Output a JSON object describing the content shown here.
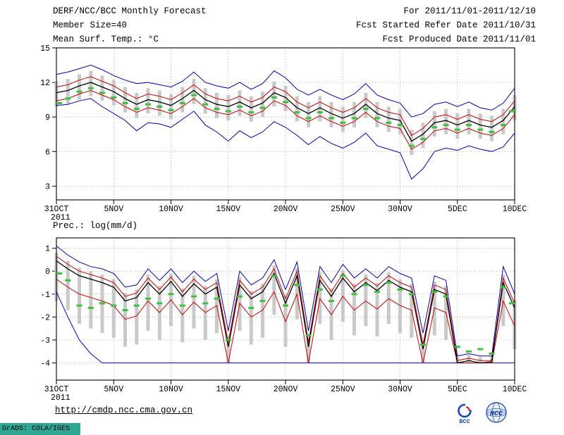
{
  "header": {
    "title": "DERF/NCC/BCC Monthly Forecast",
    "member_size": "Member Size=40",
    "forecast_range": "For 2011/11/01-2011/12/10",
    "refer_date": "Fcst Started Refer Date 2011/10/31",
    "produced_date": "Fcst Produced Date 2011/11/01"
  },
  "footer": {
    "url": "http://cmdp.ncc.cma.gov.cn",
    "bcc_logo_text": "BCC",
    "ncc_logo_text": "NCC",
    "grads_credit": "GrADS: COLA/IGES"
  },
  "colors": {
    "envelope_blue": "#0000b4",
    "quartile_red": "#c80000",
    "mean_black": "#000000",
    "obs_green": "#3fbf3f",
    "spread_gray": "#c9c9c9",
    "grads_bar_teal": "#2fa793"
  },
  "chart_data": [
    {
      "type": "line",
      "name": "mean-surface-temperature",
      "title": "Mean Surf. Temp.: °C",
      "ylabel": "°C",
      "ylim": [
        1.8,
        15.0
      ],
      "yticks": [
        15,
        12,
        9,
        6,
        3
      ],
      "x_ticklabels": [
        "31OCT",
        "5NOV",
        "10NOV",
        "15NOV",
        "20NOV",
        "25NOV",
        "30NOV",
        "5DEC",
        "10DEC"
      ],
      "x_tick_positions": [
        0,
        5,
        10,
        15,
        20,
        25,
        30,
        35,
        40
      ],
      "year_label": "2011",
      "grid": true,
      "n_points": 41,
      "bars": {
        "name": "ensemble-spread",
        "color": "#c9c9c9",
        "hi": [
          12.1,
          12.3,
          12.7,
          13.0,
          12.6,
          12.2,
          11.6,
          11.1,
          11.5,
          11.3,
          11.0,
          11.6,
          12.3,
          11.5,
          11.1,
          10.9,
          11.3,
          10.8,
          11.2,
          12.1,
          11.7,
          10.8,
          10.3,
          10.8,
          10.3,
          9.9,
          10.3,
          11.1,
          10.3,
          9.9,
          9.7,
          7.9,
          8.5,
          9.5,
          9.7,
          9.3,
          9.7,
          9.3,
          9.1,
          9.7,
          10.9
        ],
        "lo": [
          9.9,
          10.1,
          10.5,
          10.8,
          10.4,
          10.0,
          9.4,
          8.9,
          9.3,
          9.1,
          8.8,
          9.4,
          10.1,
          9.3,
          8.9,
          8.7,
          9.1,
          8.6,
          9.0,
          9.9,
          9.5,
          8.6,
          8.1,
          8.6,
          8.1,
          7.7,
          8.1,
          8.9,
          8.1,
          7.7,
          7.5,
          5.7,
          6.3,
          7.3,
          7.5,
          7.1,
          7.5,
          7.1,
          6.9,
          7.5,
          8.7
        ]
      },
      "series": [
        {
          "name": "ensemble-max",
          "color": "#0000b4",
          "width": 1,
          "values": [
            12.7,
            12.9,
            13.2,
            13.5,
            13.1,
            12.6,
            12.2,
            11.9,
            12.0,
            11.8,
            11.6,
            12.1,
            12.9,
            12.0,
            11.7,
            11.5,
            12.0,
            11.4,
            11.9,
            13.0,
            12.4,
            11.4,
            10.9,
            11.4,
            10.9,
            10.5,
            11.0,
            11.9,
            10.9,
            10.5,
            10.2,
            9.0,
            9.3,
            10.1,
            10.3,
            9.9,
            10.3,
            9.8,
            9.6,
            10.2,
            11.5
          ]
        },
        {
          "name": "ensemble-min",
          "color": "#0000b4",
          "width": 1,
          "values": [
            10.0,
            10.1,
            10.4,
            10.6,
            9.9,
            9.3,
            8.7,
            7.8,
            8.5,
            8.4,
            8.1,
            8.8,
            9.5,
            8.3,
            7.7,
            6.9,
            7.8,
            7.2,
            7.7,
            8.6,
            8.1,
            7.4,
            6.6,
            7.3,
            6.7,
            6.3,
            6.8,
            7.6,
            6.5,
            6.2,
            5.9,
            3.6,
            4.5,
            6.0,
            6.3,
            6.1,
            6.5,
            6.2,
            6.0,
            6.4,
            7.6
          ]
        },
        {
          "name": "upper-quartile",
          "color": "#c80000",
          "width": 1,
          "values": [
            11.6,
            11.8,
            12.2,
            12.5,
            12.1,
            11.7,
            11.1,
            10.6,
            11.0,
            10.8,
            10.5,
            11.1,
            11.8,
            11.0,
            10.6,
            10.4,
            10.8,
            10.3,
            10.7,
            11.6,
            11.2,
            10.3,
            9.8,
            10.3,
            9.8,
            9.4,
            9.8,
            10.6,
            9.8,
            9.4,
            9.2,
            7.4,
            8.0,
            9.0,
            9.2,
            8.8,
            9.2,
            8.8,
            8.6,
            9.2,
            10.4
          ]
        },
        {
          "name": "lower-quartile",
          "color": "#c80000",
          "width": 1,
          "values": [
            10.4,
            10.6,
            11.0,
            11.3,
            10.9,
            10.5,
            9.9,
            9.4,
            9.8,
            9.6,
            9.3,
            9.9,
            10.6,
            9.8,
            9.4,
            9.2,
            9.6,
            9.1,
            9.5,
            10.4,
            10.0,
            9.1,
            8.6,
            9.1,
            8.6,
            8.2,
            8.6,
            9.4,
            8.6,
            8.2,
            8.0,
            6.2,
            6.8,
            7.8,
            8.0,
            7.6,
            8.0,
            7.6,
            7.4,
            8.0,
            9.2
          ]
        },
        {
          "name": "ensemble-mean",
          "color": "#000000",
          "width": 1.3,
          "values": [
            11.1,
            11.3,
            11.7,
            12.0,
            11.6,
            11.2,
            10.6,
            10.1,
            10.5,
            10.3,
            10.0,
            10.6,
            11.3,
            10.5,
            10.1,
            9.9,
            10.3,
            9.8,
            10.2,
            11.1,
            10.7,
            9.8,
            9.3,
            9.8,
            9.3,
            8.9,
            9.3,
            10.1,
            9.3,
            8.9,
            8.7,
            6.9,
            7.5,
            8.5,
            8.7,
            8.3,
            8.7,
            8.3,
            8.1,
            8.7,
            9.9
          ]
        },
        {
          "name": "observation-markers",
          "color": "#3fbf3f",
          "style": "dash",
          "values": [
            10.2,
            10.6,
            11.2,
            11.5,
            11.1,
            10.7,
            10.2,
            9.7,
            10.1,
            9.9,
            9.6,
            10.2,
            10.9,
            10.1,
            9.7,
            9.5,
            9.9,
            9.4,
            9.8,
            10.7,
            10.3,
            9.4,
            8.9,
            9.4,
            8.9,
            8.5,
            8.9,
            9.7,
            8.9,
            8.5,
            8.3,
            6.5,
            7.1,
            8.1,
            8.3,
            7.9,
            8.3,
            7.9,
            7.7,
            8.3,
            9.5
          ]
        }
      ]
    },
    {
      "type": "line",
      "name": "precipitation-log",
      "title": "Prec.: log(mm/d)",
      "ylabel": "log(mm/d)",
      "ylim": [
        -4.75,
        1.45
      ],
      "yticks": [
        1,
        0,
        -1,
        -2,
        -3,
        -4
      ],
      "x_ticklabels": [
        "31OCT",
        "5NOV",
        "10NOV",
        "15NOV",
        "20NOV",
        "25NOV",
        "30NOV",
        "5DEC",
        "10DEC"
      ],
      "x_tick_positions": [
        0,
        5,
        10,
        15,
        20,
        25,
        30,
        35,
        40
      ],
      "year_label": "2011",
      "grid": true,
      "n_points": 41,
      "bars": {
        "name": "ensemble-spread",
        "color": "#c9c9c9",
        "hi": [
          0.8,
          0.45,
          0.15,
          0.0,
          -0.15,
          -0.35,
          -0.95,
          -0.8,
          -0.15,
          -0.65,
          -0.1,
          -0.75,
          -0.2,
          -0.65,
          -0.35,
          -2.95,
          -0.25,
          -0.85,
          -0.55,
          0.25,
          -1.05,
          0.15,
          -2.95,
          -0.05,
          -0.75,
          0.05,
          -0.55,
          -0.15,
          -0.5,
          -0.05,
          -0.35,
          -0.55,
          -3.05,
          -0.45,
          -0.65,
          -3.75,
          -3.65,
          -3.75,
          -3.7,
          -0.15,
          -1.25
        ],
        "lo": [
          -1.3,
          -1.7,
          -2.3,
          -2.5,
          -2.7,
          -2.9,
          -3.3,
          -3.2,
          -2.6,
          -3.0,
          -2.4,
          -3.1,
          -2.5,
          -3.0,
          -2.7,
          -4.0,
          -2.6,
          -3.2,
          -2.9,
          -1.9,
          -3.3,
          -2.1,
          -4.0,
          -2.3,
          -3.0,
          -2.2,
          -2.8,
          -2.4,
          -2.85,
          -2.3,
          -2.7,
          -2.9,
          -4.0,
          -2.8,
          -3.0,
          -4.0,
          -4.0,
          -4.0,
          -4.0,
          -2.4,
          -3.4
        ]
      },
      "series": [
        {
          "name": "ensemble-max",
          "color": "#0000b4",
          "width": 1,
          "values": [
            1.1,
            0.7,
            0.4,
            0.2,
            0.1,
            -0.1,
            -0.7,
            -0.6,
            0.1,
            -0.4,
            0.1,
            -0.5,
            0.0,
            -0.45,
            -0.1,
            -2.6,
            0.0,
            -0.6,
            -0.3,
            0.5,
            -0.8,
            0.4,
            -2.6,
            0.2,
            -0.5,
            0.3,
            -0.3,
            0.1,
            -0.3,
            0.2,
            -0.1,
            -0.3,
            -2.7,
            -0.2,
            -0.4,
            -3.7,
            -3.6,
            -3.7,
            -3.7,
            0.2,
            -1.0
          ]
        },
        {
          "name": "ensemble-min",
          "color": "#0000b4",
          "width": 1,
          "values": [
            -0.9,
            -2.0,
            -3.0,
            -3.6,
            -4.0,
            -4.0,
            -4.0,
            -4.0,
            -4.0,
            -4.0,
            -4.0,
            -4.0,
            -4.0,
            -4.0,
            -4.0,
            -4.0,
            -4.0,
            -4.0,
            -4.0,
            -4.0,
            -4.0,
            -4.0,
            -4.0,
            -4.0,
            -4.0,
            -4.0,
            -4.0,
            -4.0,
            -4.0,
            -4.0,
            -4.0,
            -4.0,
            -4.0,
            -4.0,
            -4.0,
            -4.0,
            -4.0,
            -4.0,
            -4.0,
            -4.0,
            -4.0
          ]
        },
        {
          "name": "upper-quartile",
          "color": "#c80000",
          "width": 1,
          "values": [
            0.65,
            0.3,
            0.0,
            -0.15,
            -0.3,
            -0.5,
            -1.1,
            -0.95,
            -0.3,
            -0.8,
            -0.25,
            -0.9,
            -0.35,
            -0.8,
            -0.5,
            -3.1,
            -0.4,
            -1.0,
            -0.7,
            0.1,
            -1.2,
            0.0,
            -3.1,
            -0.2,
            -0.9,
            -0.1,
            -0.7,
            -0.3,
            -0.65,
            -0.2,
            -0.5,
            -0.7,
            -3.2,
            -0.6,
            -0.8,
            -3.9,
            -3.8,
            -3.9,
            -3.9,
            -0.3,
            -1.4
          ]
        },
        {
          "name": "lower-quartile",
          "color": "#c80000",
          "width": 1,
          "values": [
            -0.35,
            -0.7,
            -1.0,
            -1.15,
            -1.3,
            -1.5,
            -2.1,
            -1.95,
            -1.3,
            -1.8,
            -1.25,
            -1.9,
            -1.35,
            -1.8,
            -1.5,
            -4.0,
            -1.4,
            -2.0,
            -1.7,
            -0.9,
            -2.2,
            -1.0,
            -4.0,
            -1.2,
            -1.9,
            -1.1,
            -1.7,
            -1.3,
            -1.65,
            -1.2,
            -1.5,
            -1.7,
            -4.0,
            -1.6,
            -1.8,
            -4.0,
            -4.0,
            -4.0,
            -4.0,
            -1.3,
            -2.4
          ]
        },
        {
          "name": "ensemble-mean",
          "color": "#000000",
          "width": 1.3,
          "values": [
            0.45,
            0.1,
            -0.2,
            -0.35,
            -0.5,
            -0.7,
            -1.3,
            -1.15,
            -0.5,
            -1.0,
            -0.45,
            -1.1,
            -0.55,
            -1.0,
            -0.7,
            -3.3,
            -0.6,
            -1.2,
            -0.9,
            -0.1,
            -1.4,
            -0.2,
            -3.3,
            -0.4,
            -1.1,
            -0.3,
            -0.9,
            -0.5,
            -0.85,
            -0.4,
            -0.7,
            -0.9,
            -3.4,
            -0.8,
            -1.0,
            -4.0,
            -3.9,
            -4.0,
            -3.95,
            -0.5,
            -1.6
          ]
        },
        {
          "name": "observation-markers",
          "color": "#3fbf3f",
          "style": "dash",
          "values": [
            -0.1,
            -0.4,
            -1.5,
            -1.6,
            -1.4,
            -1.5,
            -1.7,
            -1.5,
            -1.2,
            -1.4,
            -1.0,
            -1.5,
            -1.1,
            -1.4,
            -1.2,
            -3.0,
            -1.1,
            -1.6,
            -1.3,
            -0.2,
            -1.5,
            -0.6,
            -2.8,
            -0.8,
            -1.3,
            -0.2,
            -1.0,
            -0.6,
            -0.9,
            -0.5,
            -0.8,
            -1.0,
            -3.2,
            -0.9,
            -1.1,
            -3.3,
            -3.5,
            -3.4,
            -3.6,
            -0.7,
            -1.4
          ]
        }
      ]
    }
  ]
}
